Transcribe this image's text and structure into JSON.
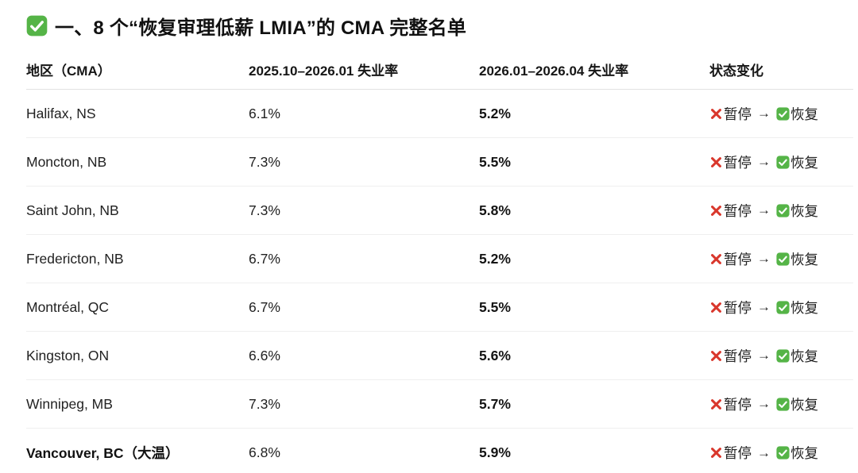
{
  "title": {
    "icon": "check-mark-badge-icon",
    "text": "一、8 个“恢复审理低薪 LMIA”的 CMA 完整名单"
  },
  "table": {
    "columns": [
      "地区（CMA）",
      "2025.10–2026.01 失业率",
      "2026.01–2026.04 失业率",
      "状态变化"
    ],
    "status_arrow": "→",
    "rows": [
      {
        "region": "Halifax, NS",
        "rate_period1": "6.1%",
        "rate_period2": "5.2%",
        "status_from": "暂停",
        "status_to": "恢复"
      },
      {
        "region": "Moncton, NB",
        "rate_period1": "7.3%",
        "rate_period2": "5.5%",
        "status_from": "暂停",
        "status_to": "恢复"
      },
      {
        "region": "Saint John, NB",
        "rate_period1": "7.3%",
        "rate_period2": "5.8%",
        "status_from": "暂停",
        "status_to": "恢复"
      },
      {
        "region": "Fredericton, NB",
        "rate_period1": "6.7%",
        "rate_period2": "5.2%",
        "status_from": "暂停",
        "status_to": "恢复"
      },
      {
        "region": "Montréal, QC",
        "rate_period1": "6.7%",
        "rate_period2": "5.5%",
        "status_from": "暂停",
        "status_to": "恢复"
      },
      {
        "region": "Kingston, ON",
        "rate_period1": "6.6%",
        "rate_period2": "5.6%",
        "status_from": "暂停",
        "status_to": "恢复"
      },
      {
        "region": "Winnipeg, MB",
        "rate_period1": "7.3%",
        "rate_period2": "5.7%",
        "status_from": "暂停",
        "status_to": "恢复"
      },
      {
        "region": "Vancouver, BC（大温）",
        "rate_period1": "6.8%",
        "rate_period2": "5.9%",
        "status_from": "暂停",
        "status_to": "恢复"
      }
    ]
  },
  "colors": {
    "check_green": "#55b447",
    "cross_red": "#d9372c"
  }
}
